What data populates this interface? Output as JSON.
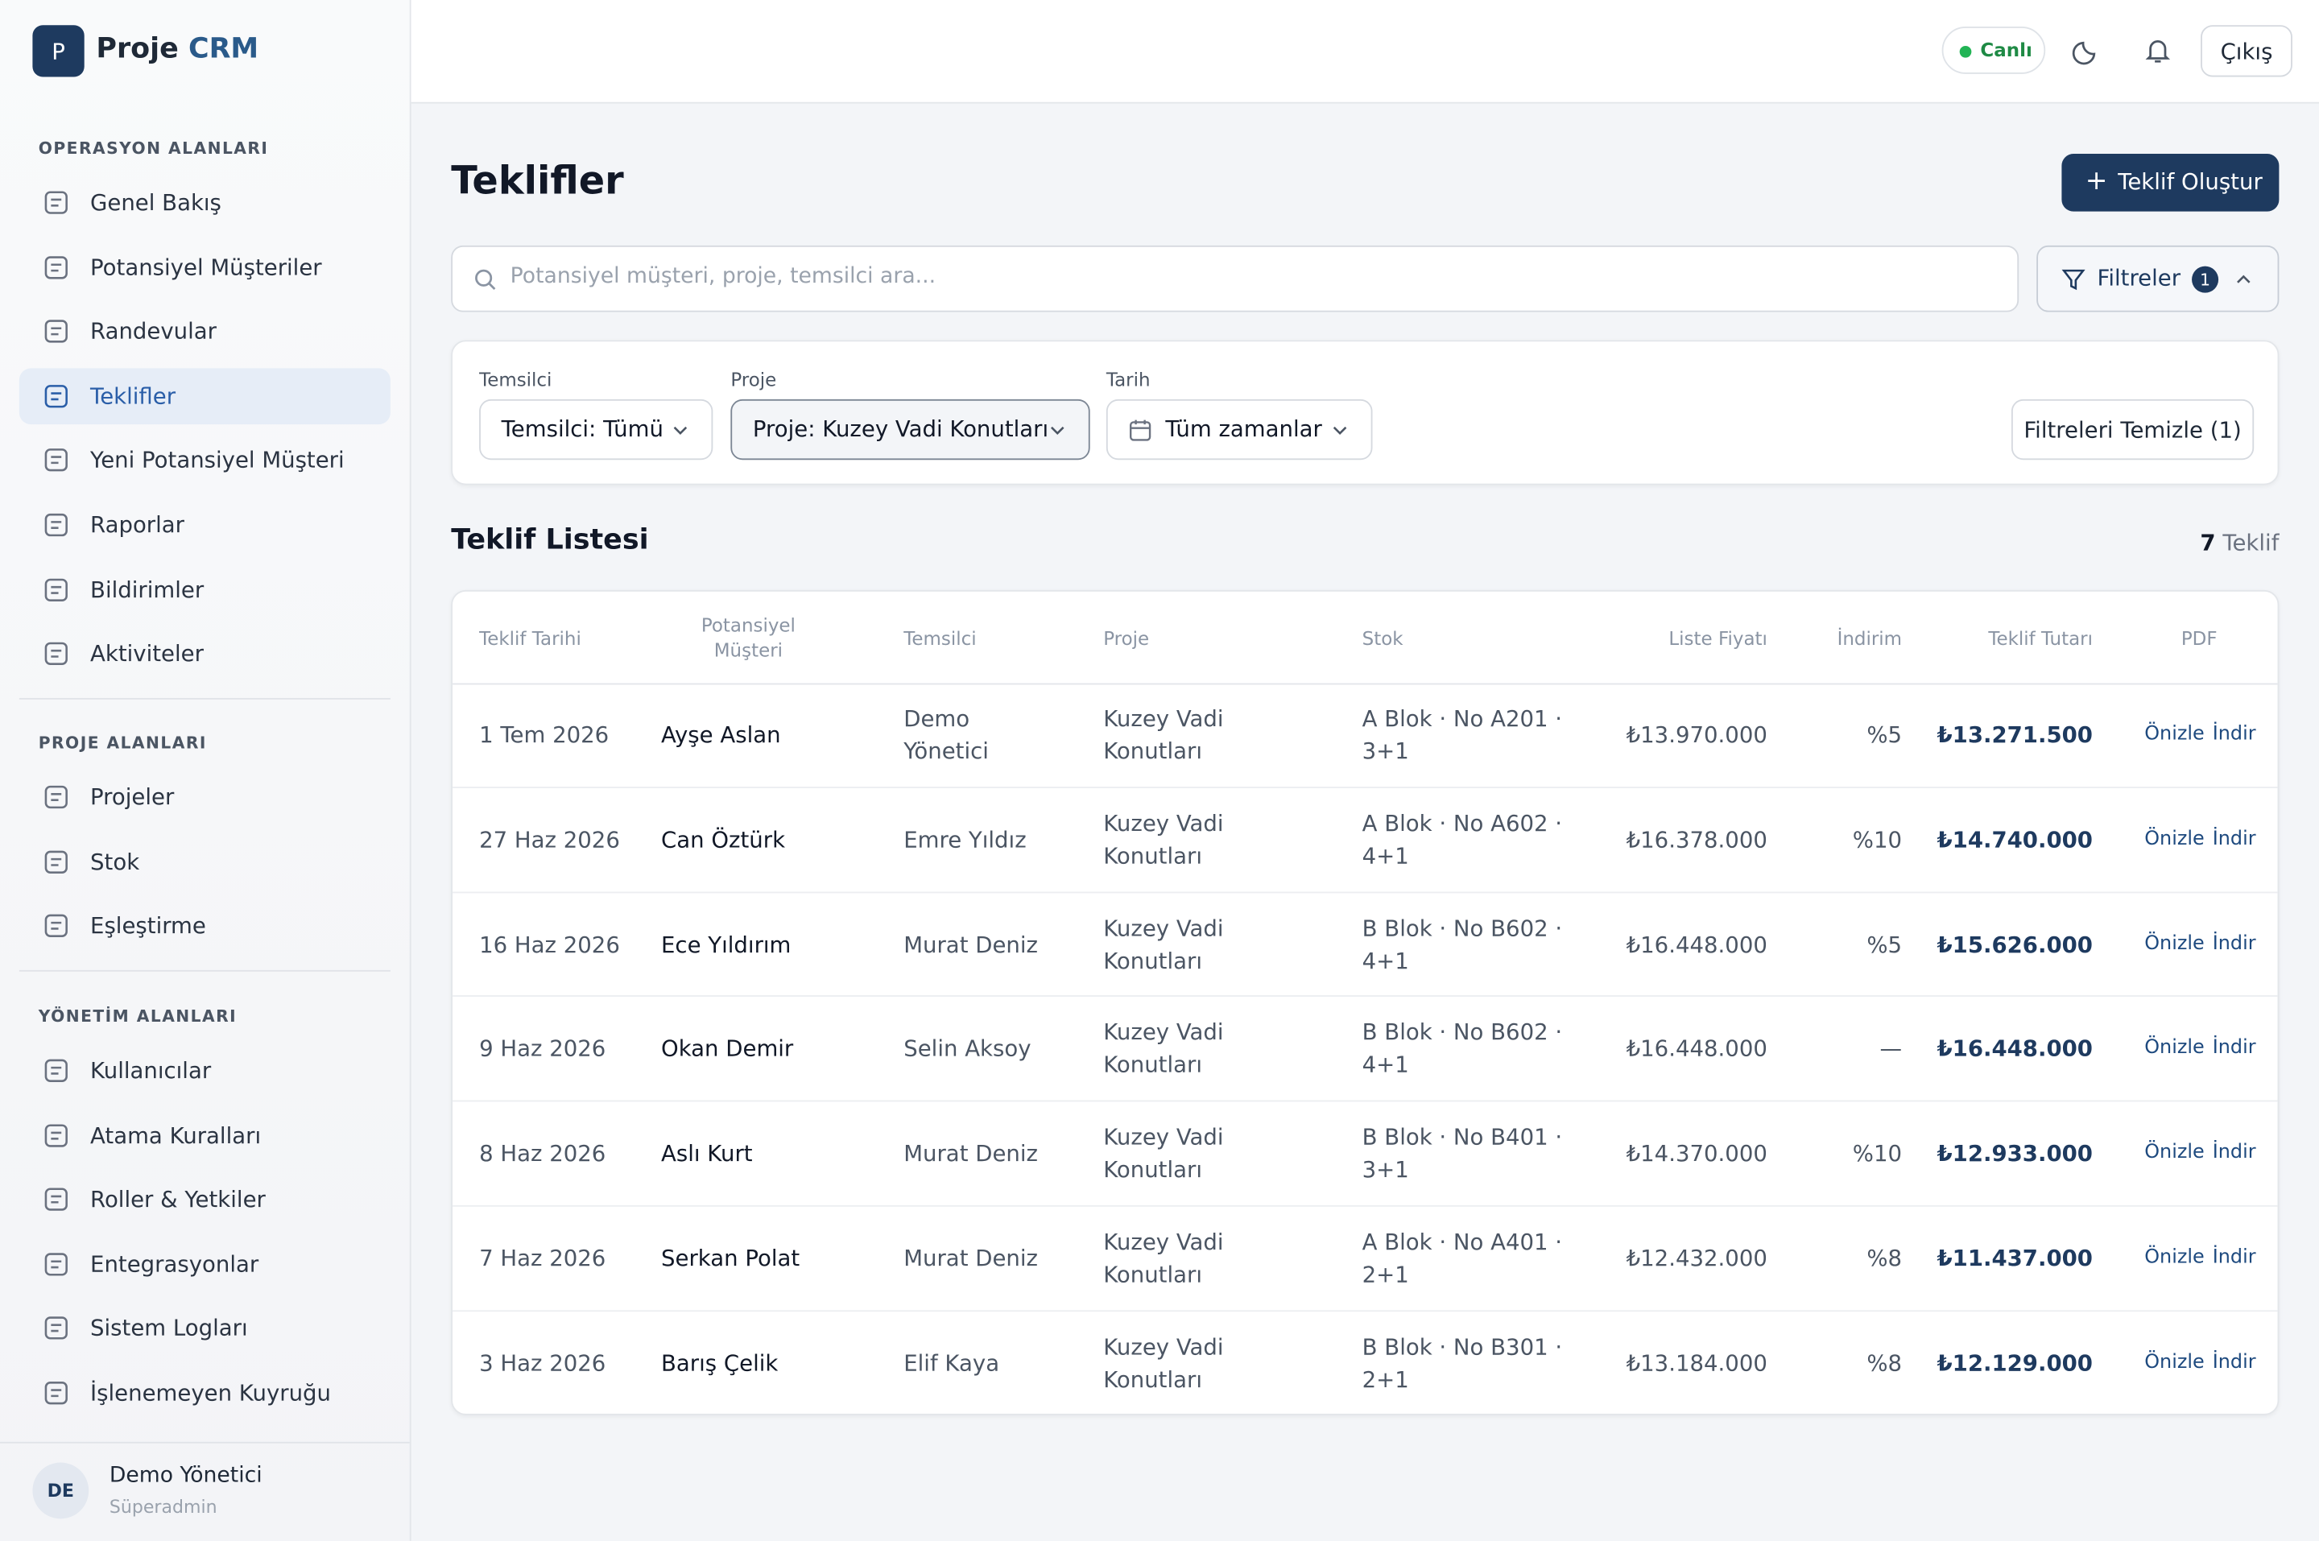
{
  "brand": {
    "logo": "P",
    "name": "Proje",
    "accent": "CRM"
  },
  "topbar": {
    "status": "Canlı",
    "logout": "Çıkış"
  },
  "sidebar": {
    "sections": [
      {
        "title": "OPERASYON ALANLARI",
        "items": [
          {
            "label": "Genel Bakış"
          },
          {
            "label": "Potansiyel Müşteriler"
          },
          {
            "label": "Randevular"
          },
          {
            "label": "Teklifler",
            "active": true
          },
          {
            "label": "Yeni Potansiyel Müşteri"
          },
          {
            "label": "Raporlar"
          },
          {
            "label": "Bildirimler"
          },
          {
            "label": "Aktiviteler"
          }
        ]
      },
      {
        "title": "PROJE ALANLARI",
        "items": [
          {
            "label": "Projeler"
          },
          {
            "label": "Stok"
          },
          {
            "label": "Eşleştirme"
          }
        ]
      },
      {
        "title": "YÖNETİM ALANLARI",
        "items": [
          {
            "label": "Kullanıcılar"
          },
          {
            "label": "Atama Kuralları"
          },
          {
            "label": "Roller & Yetkiler"
          },
          {
            "label": "Entegrasyonlar"
          },
          {
            "label": "Sistem Logları"
          },
          {
            "label": "İşlenemeyen Kuyruğu"
          }
        ]
      }
    ]
  },
  "user": {
    "initials": "DE",
    "name": "Demo Yönetici",
    "role": "Süperadmin"
  },
  "page": {
    "title": "Teklifler",
    "create_button": "Teklif Oluştur",
    "search_placeholder": "Potansiyel müşteri, proje, temsilci ara...",
    "filters_button": "Filtreler",
    "filters_count": 1
  },
  "filters": {
    "fields": [
      {
        "label": "Temsilci",
        "value": "Temsilci: Tümü"
      },
      {
        "label": "Proje",
        "value": "Proje: Kuzey Vadi Konutları",
        "selected": true
      },
      {
        "label": "Tarih",
        "value": "Tüm zamanlar"
      }
    ],
    "clear": "Filtreleri Temizle (1)"
  },
  "list": {
    "title": "Teklif Listesi",
    "count": 7,
    "unit": "Teklif"
  },
  "table": {
    "columns": [
      "Teklif Tarihi",
      "Potansiyel Müşteri",
      "Temsilci",
      "Proje",
      "Stok",
      "Liste Fiyatı",
      "İndirim",
      "Teklif Tutarı",
      "PDF"
    ],
    "actions": [
      "Önizle",
      "İndir"
    ],
    "rows": [
      [
        "1 Tem 2026",
        "Ayşe Aslan",
        "Demo Yönetici",
        "Kuzey Vadi Konutları",
        "A Blok · No A201 · 3+1",
        "₺13.970.000",
        "%5",
        "₺13.271.500"
      ],
      [
        "27 Haz 2026",
        "Can Öztürk",
        "Emre Yıldız",
        "Kuzey Vadi Konutları",
        "A Blok · No A602 · 4+1",
        "₺16.378.000",
        "%10",
        "₺14.740.000"
      ],
      [
        "16 Haz 2026",
        "Ece Yıldırım",
        "Murat Deniz",
        "Kuzey Vadi Konutları",
        "B Blok · No B602 · 4+1",
        "₺16.448.000",
        "%5",
        "₺15.626.000"
      ],
      [
        "9 Haz 2026",
        "Okan Demir",
        "Selin Aksoy",
        "Kuzey Vadi Konutları",
        "B Blok · No B602 · 4+1",
        "₺16.448.000",
        "—",
        "₺16.448.000"
      ],
      [
        "8 Haz 2026",
        "Aslı Kurt",
        "Murat Deniz",
        "Kuzey Vadi Konutları",
        "B Blok · No B401 · 3+1",
        "₺14.370.000",
        "%10",
        "₺12.933.000"
      ],
      [
        "7 Haz 2026",
        "Serkan Polat",
        "Murat Deniz",
        "Kuzey Vadi Konutları",
        "A Blok · No A401 · 2+1",
        "₺12.432.000",
        "%8",
        "₺11.437.000"
      ],
      [
        "3 Haz 2026",
        "Barış Çelik",
        "Elif Kaya",
        "Kuzey Vadi Konutları",
        "B Blok · No B301 · 2+1",
        "₺13.184.000",
        "%8",
        "₺12.129.000"
      ]
    ]
  }
}
